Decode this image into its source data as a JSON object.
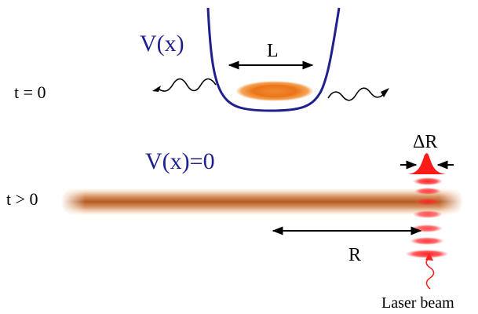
{
  "labels": {
    "time_initial": "t = 0",
    "time_later": "t > 0",
    "potential_trapped": "V(x)",
    "potential_free": "V(x)=0",
    "trap_width": "L",
    "distance": "R",
    "resolution": "ΔR",
    "laser": "Laser beam"
  },
  "colors": {
    "trap_curve": "#1f1f8f",
    "potential_text": "#1f1f8f",
    "cloud_core": "#e06a10",
    "cloud_edge": "#f7a040",
    "laser_red": "#ff2020",
    "arrow": "#000000",
    "text": "#000000"
  }
}
